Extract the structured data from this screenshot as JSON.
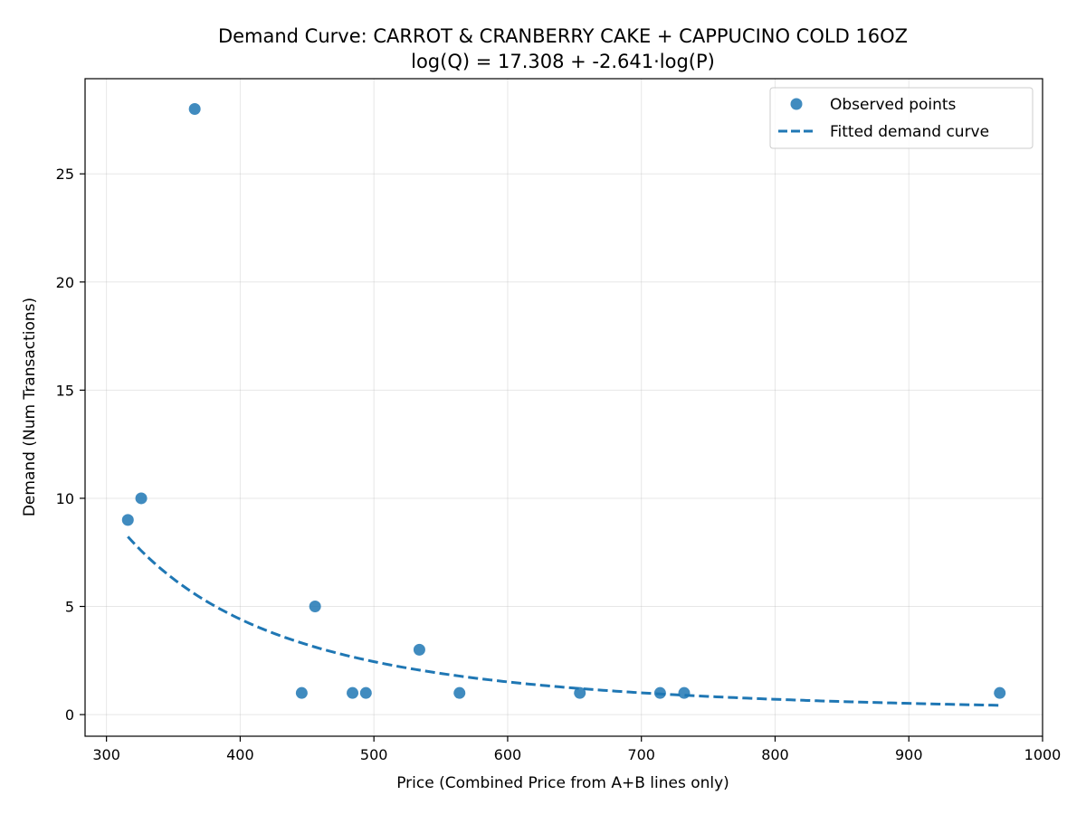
{
  "chart_data": {
    "type": "scatter",
    "title": "Demand Curve: CARROT & CRANBERRY CAKE + CAPPUCINO COLD 16OZ",
    "subtitle": "log(Q) = 17.308 + -2.641·log(P)",
    "xlabel": "Price (Combined Price from A+B lines only)",
    "ylabel": "Demand (Num Transactions)",
    "xlim": [
      284,
      1000
    ],
    "ylim": [
      -1.0,
      29.4
    ],
    "x_ticks": [
      300,
      400,
      500,
      600,
      700,
      800,
      900,
      1000
    ],
    "y_ticks": [
      0,
      5,
      10,
      15,
      20,
      25
    ],
    "grid": true,
    "legend_position": "top-right",
    "series": [
      {
        "name": "Observed points",
        "kind": "scatter",
        "color": "#1f77b4",
        "points": [
          {
            "x": 316,
            "y": 9
          },
          {
            "x": 326,
            "y": 10
          },
          {
            "x": 366,
            "y": 28
          },
          {
            "x": 446,
            "y": 1
          },
          {
            "x": 456,
            "y": 5
          },
          {
            "x": 484,
            "y": 1
          },
          {
            "x": 494,
            "y": 1
          },
          {
            "x": 534,
            "y": 3
          },
          {
            "x": 564,
            "y": 1
          },
          {
            "x": 654,
            "y": 1
          },
          {
            "x": 714,
            "y": 1
          },
          {
            "x": 732,
            "y": 1
          },
          {
            "x": 968,
            "y": 1
          }
        ]
      },
      {
        "name": "Fitted demand curve",
        "kind": "line",
        "style": "dashed",
        "color": "#1f77b4",
        "intercept": 17.308,
        "slope": -2.641,
        "x_range": [
          316,
          968
        ]
      }
    ]
  }
}
